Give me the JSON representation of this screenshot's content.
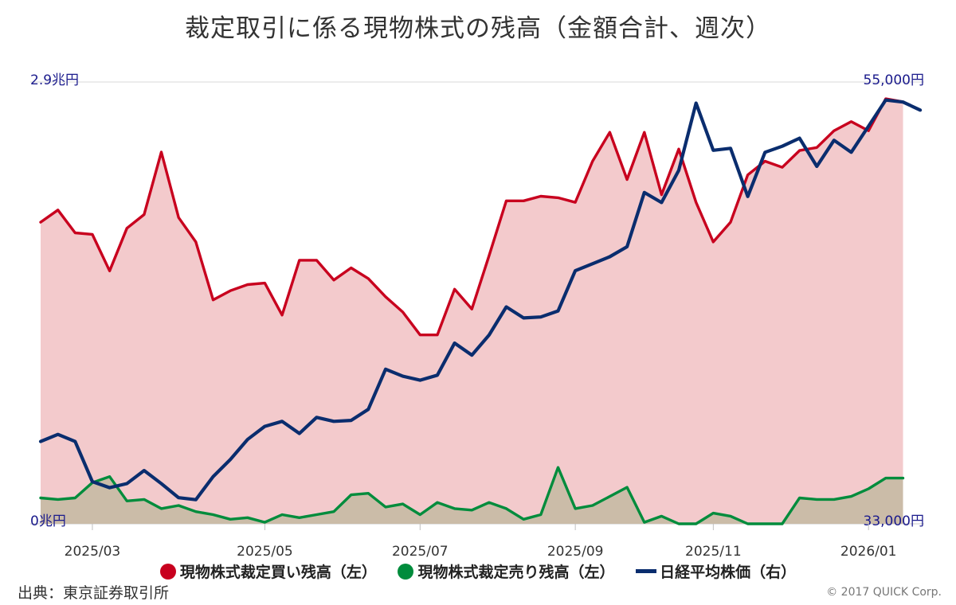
{
  "chart_data": {
    "type": "line",
    "title": "裁定取引に係る現物株式の残高（金額合計、週次）",
    "left_axis": {
      "min_label": "0兆円",
      "max_label": "2.9兆円",
      "range": [
        0,
        2.9
      ],
      "unit": "兆円"
    },
    "right_axis": {
      "min_label": "33,000円",
      "max_label": "55,000円",
      "range": [
        33000,
        55000
      ],
      "unit": "円"
    },
    "x_tick_labels": [
      "2025/03",
      "2025/05",
      "2025/07",
      "2025/09",
      "2025/11",
      "2026/01"
    ],
    "x_tick_week_index": [
      3,
      13,
      22,
      31,
      39,
      48
    ],
    "series": [
      {
        "name": "現物株式裁定買い残高（左）",
        "axis": "left",
        "color": "#c8001e",
        "fill": "#f3cacc",
        "values": [
          1.98,
          2.06,
          1.91,
          1.9,
          1.66,
          1.94,
          2.03,
          2.44,
          2.01,
          1.85,
          1.47,
          1.53,
          1.57,
          1.58,
          1.37,
          1.73,
          1.73,
          1.6,
          1.68,
          1.61,
          1.49,
          1.39,
          1.24,
          1.24,
          1.54,
          1.41,
          1.76,
          2.12,
          2.12,
          2.15,
          2.14,
          2.11,
          2.38,
          2.57,
          2.26,
          2.57,
          2.16,
          2.46,
          2.11,
          1.85,
          1.98,
          2.29,
          2.38,
          2.34,
          2.45,
          2.47,
          2.58,
          2.64,
          2.58,
          2.79,
          2.77
        ]
      },
      {
        "name": "現物株式裁定売り残高（左）",
        "axis": "left",
        "color": "#008c3c",
        "values": [
          0.17,
          0.16,
          0.17,
          0.27,
          0.31,
          0.15,
          0.16,
          0.1,
          0.12,
          0.08,
          0.06,
          0.03,
          0.04,
          0.01,
          0.06,
          0.04,
          0.06,
          0.08,
          0.19,
          0.2,
          0.11,
          0.13,
          0.06,
          0.14,
          0.1,
          0.09,
          0.14,
          0.1,
          0.03,
          0.06,
          0.37,
          0.1,
          0.12,
          0.18,
          0.24,
          0.01,
          0.05,
          0.0,
          0.0,
          0.07,
          0.05,
          0.0,
          0.0,
          0.0,
          0.17,
          0.16,
          0.16,
          0.18,
          0.23,
          0.3,
          0.3
        ]
      },
      {
        "name": "日経平均株価（右）",
        "axis": "right",
        "color": "#0a2d6e",
        "values": [
          37100,
          37450,
          37100,
          35100,
          34800,
          35000,
          35650,
          35000,
          34300,
          34200,
          35350,
          36200,
          37200,
          37850,
          38100,
          37500,
          38300,
          38100,
          38150,
          38700,
          40700,
          40350,
          40150,
          40400,
          42000,
          41400,
          42400,
          43800,
          43250,
          43300,
          43600,
          45600,
          45950,
          46300,
          46800,
          49500,
          49000,
          50600,
          53950,
          51600,
          51700,
          49300,
          51500,
          51800,
          52200,
          50800,
          52100,
          51500,
          52800,
          54100,
          54000,
          53600
        ]
      }
    ],
    "legend_position": "bottom"
  },
  "legend": [
    {
      "label": "現物株式裁定買い残高（左）",
      "color": "#c8001e"
    },
    {
      "label": "現物株式裁定売り残高（左）",
      "color": "#008c3c"
    },
    {
      "label": "日経平均株価（右）",
      "color": "#0a2d6e"
    }
  ],
  "footer": {
    "source": "出典：東京証券取引所",
    "copyright": "© 2017 QUICK Corp."
  }
}
